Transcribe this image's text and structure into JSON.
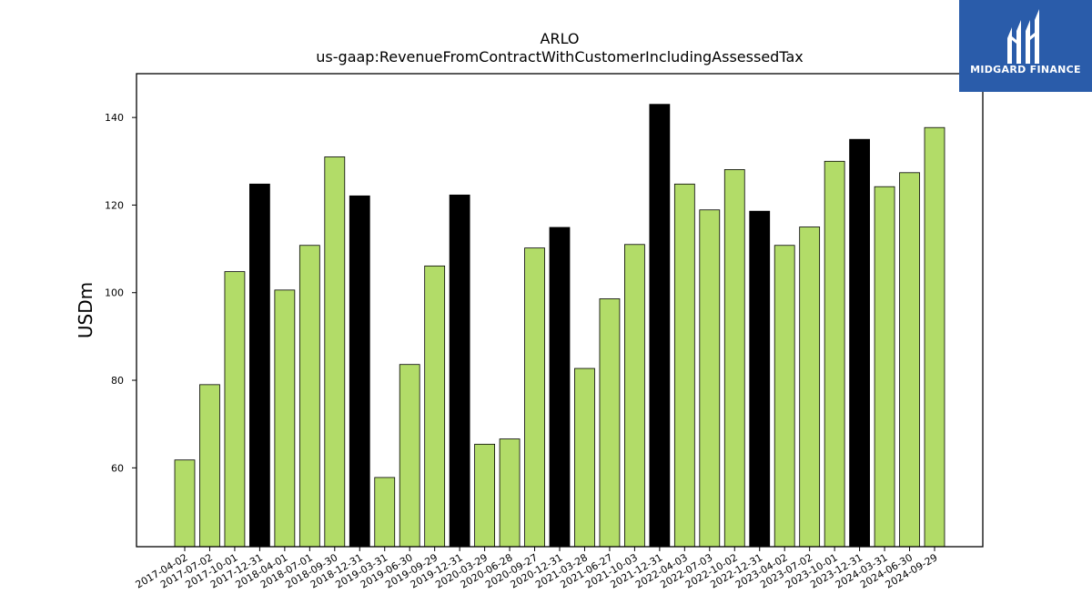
{
  "chart_data": {
    "type": "bar",
    "title": "ARLO",
    "subtitle": "us-gaap:RevenueFromContractWithCustomerIncludingAssessedTax",
    "xlabel": "",
    "ylabel": "USDm",
    "ylim": [
      42,
      150
    ],
    "yticks": [
      60,
      80,
      100,
      120,
      140
    ],
    "grid": false,
    "colors": {
      "quarter": "#b2dc68",
      "year_end": "#000000",
      "edge": "#000000"
    },
    "categories": [
      "2017-04-02",
      "2017-07-02",
      "2017-10-01",
      "2017-12-31",
      "2018-04-01",
      "2018-07-01",
      "2018-09-30",
      "2018-12-31",
      "2019-03-31",
      "2019-06-30",
      "2019-09-29",
      "2019-12-31",
      "2020-03-29",
      "2020-06-28",
      "2020-09-27",
      "2020-12-31",
      "2021-03-28",
      "2021-06-27",
      "2021-10-03",
      "2021-12-31",
      "2022-04-03",
      "2022-07-03",
      "2022-10-02",
      "2022-12-31",
      "2023-04-02",
      "2023-07-02",
      "2023-10-01",
      "2023-12-31",
      "2024-03-31",
      "2024-06-30",
      "2024-09-29"
    ],
    "values": [
      61.8,
      79.0,
      104.8,
      124.8,
      100.6,
      110.8,
      131.0,
      122.1,
      57.8,
      83.6,
      106.1,
      122.3,
      65.4,
      66.6,
      110.2,
      114.9,
      82.7,
      98.6,
      111.0,
      143.0,
      124.8,
      118.9,
      128.1,
      118.6,
      110.8,
      115.0,
      130.0,
      135.0,
      124.2,
      127.4,
      137.7
    ],
    "highlight": [
      false,
      false,
      false,
      true,
      false,
      false,
      false,
      true,
      false,
      false,
      false,
      true,
      false,
      false,
      false,
      true,
      false,
      false,
      false,
      true,
      false,
      false,
      false,
      true,
      false,
      false,
      false,
      true,
      false,
      false,
      false
    ]
  },
  "logo": {
    "text": "MIDGARD FINANCE",
    "background": "#2a5caa"
  }
}
